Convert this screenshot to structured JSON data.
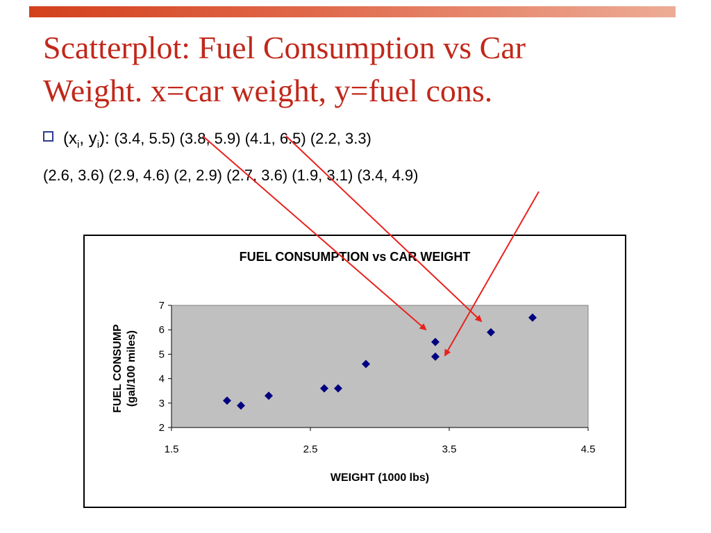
{
  "slide": {
    "title_line1": "Scatterplot: Fuel Consumption vs Car",
    "title_line2": "Weight.  x=car weight, y=fuel cons.",
    "bullet_lead": "(x",
    "bullet_sub1": "i",
    "bullet_mid": ", y",
    "bullet_sub2": "i",
    "bullet_end": "):",
    "pairs_line1": "(3.4, 5.5) (3.8, 5.9) (4.1, 6.5) (2.2, 3.3)",
    "pairs_line2": "(2.6, 3.6) (2.9, 4.6) (2, 2.9) (2.7, 3.6) (1.9, 3.1) (3.4, 4.9)"
  },
  "colors": {
    "title": "#c0281a",
    "plot_area": "#c0c0c0",
    "marker": "#000080",
    "arrow": "#e8211c",
    "bullet": "#2f3a8e"
  },
  "chart_data": {
    "type": "scatter",
    "title": "FUEL CONSUMPTION vs CAR WEIGHT",
    "xlabel": "WEIGHT (1000 lbs)",
    "ylabel_line1": "FUEL CONSUMP",
    "ylabel_line2": "(gal/100 miles)",
    "xlim": [
      1.5,
      4.5
    ],
    "ylim": [
      2,
      7
    ],
    "xticks": [
      1.5,
      2.5,
      3.5,
      4.5
    ],
    "xtick_labels": [
      "1.5",
      "2.5",
      "3.5",
      "4.5"
    ],
    "yticks": [
      2,
      3,
      4,
      5,
      6,
      7
    ],
    "grid": false,
    "legend": "none",
    "marker": "diamond",
    "points": [
      {
        "x": 3.4,
        "y": 5.5
      },
      {
        "x": 3.8,
        "y": 5.9
      },
      {
        "x": 4.1,
        "y": 6.5
      },
      {
        "x": 2.2,
        "y": 3.3
      },
      {
        "x": 2.6,
        "y": 3.6
      },
      {
        "x": 2.9,
        "y": 4.6
      },
      {
        "x": 2.0,
        "y": 2.9
      },
      {
        "x": 2.7,
        "y": 3.6
      },
      {
        "x": 1.9,
        "y": 3.1
      },
      {
        "x": 3.4,
        "y": 4.9
      }
    ]
  }
}
